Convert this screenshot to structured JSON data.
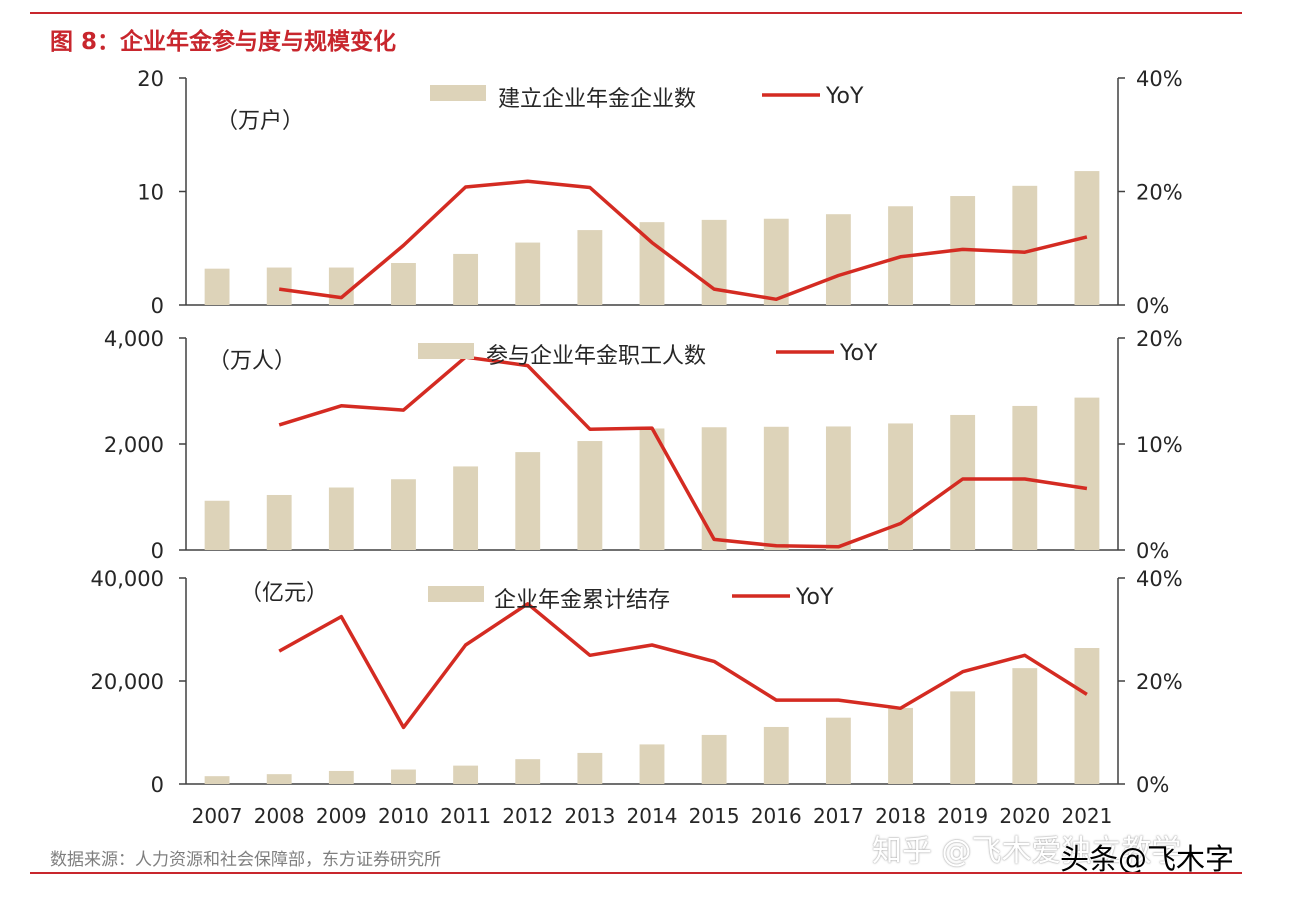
{
  "title": "图 8：企业年金参与度与规模变化",
  "source": "数据来源：人力资源和社会保障部，东方证券研究所",
  "watermark_zhihu": "知乎 @飞木爱独立教学",
  "watermark_toutiao": "头条@飞木字",
  "colors": {
    "bar": "#ddd3b9",
    "line": "#d42b22",
    "accent": "#c8262d",
    "axis": "#404040"
  },
  "chart_data": [
    {
      "type": "bar+line",
      "unit_label": "（万户）",
      "categories": [
        "2007",
        "2008",
        "2009",
        "2010",
        "2011",
        "2012",
        "2013",
        "2014",
        "2015",
        "2016",
        "2017",
        "2018",
        "2019",
        "2020",
        "2021"
      ],
      "left_ticks": [
        "0",
        "10",
        "20"
      ],
      "right_ticks": [
        "0%",
        "20%",
        "40%"
      ],
      "ylim_left": [
        0,
        20
      ],
      "ylim_right": [
        0,
        40
      ],
      "series": [
        {
          "name": "建立企业年金企业数",
          "kind": "bar",
          "axis": "left",
          "values": [
            3.2,
            3.3,
            3.3,
            3.7,
            4.5,
            5.5,
            6.6,
            7.3,
            7.5,
            7.6,
            8.0,
            8.7,
            9.6,
            10.5,
            11.8
          ]
        },
        {
          "name": "YoY",
          "kind": "line",
          "axis": "right",
          "values": [
            null,
            2.8,
            1.3,
            10.5,
            20.8,
            21.8,
            20.7,
            11.0,
            2.8,
            1.0,
            5.2,
            8.5,
            9.8,
            9.3,
            12.0
          ]
        }
      ]
    },
    {
      "type": "bar+line",
      "unit_label": "（万人）",
      "categories": [
        "2007",
        "2008",
        "2009",
        "2010",
        "2011",
        "2012",
        "2013",
        "2014",
        "2015",
        "2016",
        "2017",
        "2018",
        "2019",
        "2020",
        "2021"
      ],
      "left_ticks": [
        "0",
        "2,000",
        "4,000"
      ],
      "right_ticks": [
        "0%",
        "10%",
        "20%"
      ],
      "ylim_left": [
        0,
        4000
      ],
      "ylim_right": [
        0,
        20
      ],
      "series": [
        {
          "name": "参与企业年金职工人数",
          "kind": "bar",
          "axis": "left",
          "values": [
            929,
            1038,
            1179,
            1335,
            1577,
            1847,
            2056,
            2293,
            2316,
            2325,
            2331,
            2388,
            2548,
            2718,
            2875
          ]
        },
        {
          "name": "YoY",
          "kind": "line",
          "axis": "right",
          "values": [
            null,
            11.8,
            13.6,
            13.2,
            18.2,
            17.4,
            11.4,
            11.5,
            1.0,
            0.4,
            0.3,
            2.5,
            6.7,
            6.7,
            5.8
          ]
        }
      ]
    },
    {
      "type": "bar+line",
      "unit_label": "（亿元）",
      "categories": [
        "2007",
        "2008",
        "2009",
        "2010",
        "2011",
        "2012",
        "2013",
        "2014",
        "2015",
        "2016",
        "2017",
        "2018",
        "2019",
        "2020",
        "2021"
      ],
      "left_ticks": [
        "0",
        "20,000",
        "40,000"
      ],
      "right_ticks": [
        "0%",
        "20%",
        "40%"
      ],
      "ylim_left": [
        0,
        40000
      ],
      "ylim_right": [
        0,
        40
      ],
      "series": [
        {
          "name": "企业年金累计结存",
          "kind": "bar",
          "axis": "left",
          "values": [
            1519,
            1911,
            2533,
            2809,
            3570,
            4821,
            6035,
            7689,
            9526,
            11075,
            12880,
            14770,
            17985,
            22497,
            26406
          ]
        },
        {
          "name": "YoY",
          "kind": "line",
          "axis": "right",
          "values": [
            null,
            25.8,
            32.5,
            11.0,
            27.0,
            35.0,
            25.0,
            27.0,
            23.8,
            16.3,
            16.3,
            14.7,
            21.8,
            25.0,
            17.4
          ]
        }
      ]
    }
  ]
}
